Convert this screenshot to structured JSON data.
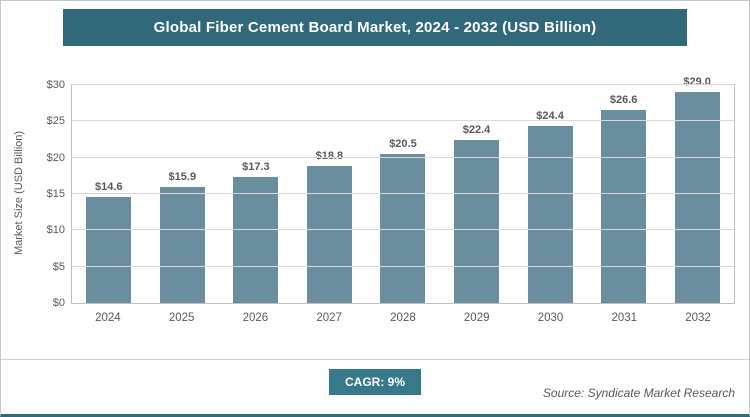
{
  "header": {
    "title": "Global Fiber Cement Board Market, 2024 - 2032 (USD Billion)"
  },
  "chart_data": {
    "type": "bar",
    "title": "Global Fiber Cement Board Market, 2024 - 2032 (USD Billion)",
    "categories": [
      "2024",
      "2025",
      "2026",
      "2027",
      "2028",
      "2029",
      "2030",
      "2031",
      "2032"
    ],
    "values": [
      14.6,
      15.9,
      17.3,
      18.8,
      20.5,
      22.4,
      24.4,
      26.6,
      29.0
    ],
    "value_labels": [
      "$14.6",
      "$15.9",
      "$17.3",
      "$18.8",
      "$20.5",
      "$22.4",
      "$24.4",
      "$26.6",
      "$29.0"
    ],
    "xlabel": "",
    "ylabel": "Market Size (USD Billion)",
    "ylim": [
      0,
      30
    ],
    "yticks": [
      0,
      5,
      10,
      15,
      20,
      25,
      30
    ],
    "ytick_labels": [
      "$0",
      "$5",
      "$10",
      "$15",
      "$20",
      "$25",
      "$30"
    ],
    "grid": true,
    "legend": false,
    "bar_color": "#6a8e9e"
  },
  "footer": {
    "cagr_label": "CAGR: 9%",
    "source": "Source: Syndicate Market Research"
  },
  "colors": {
    "header_bg": "#31687a",
    "bar": "#6a8e9e",
    "badge_bg": "#35798b",
    "text": "#595959",
    "gridline": "#d9d9d9",
    "plot_border": "#bfbfbf"
  }
}
